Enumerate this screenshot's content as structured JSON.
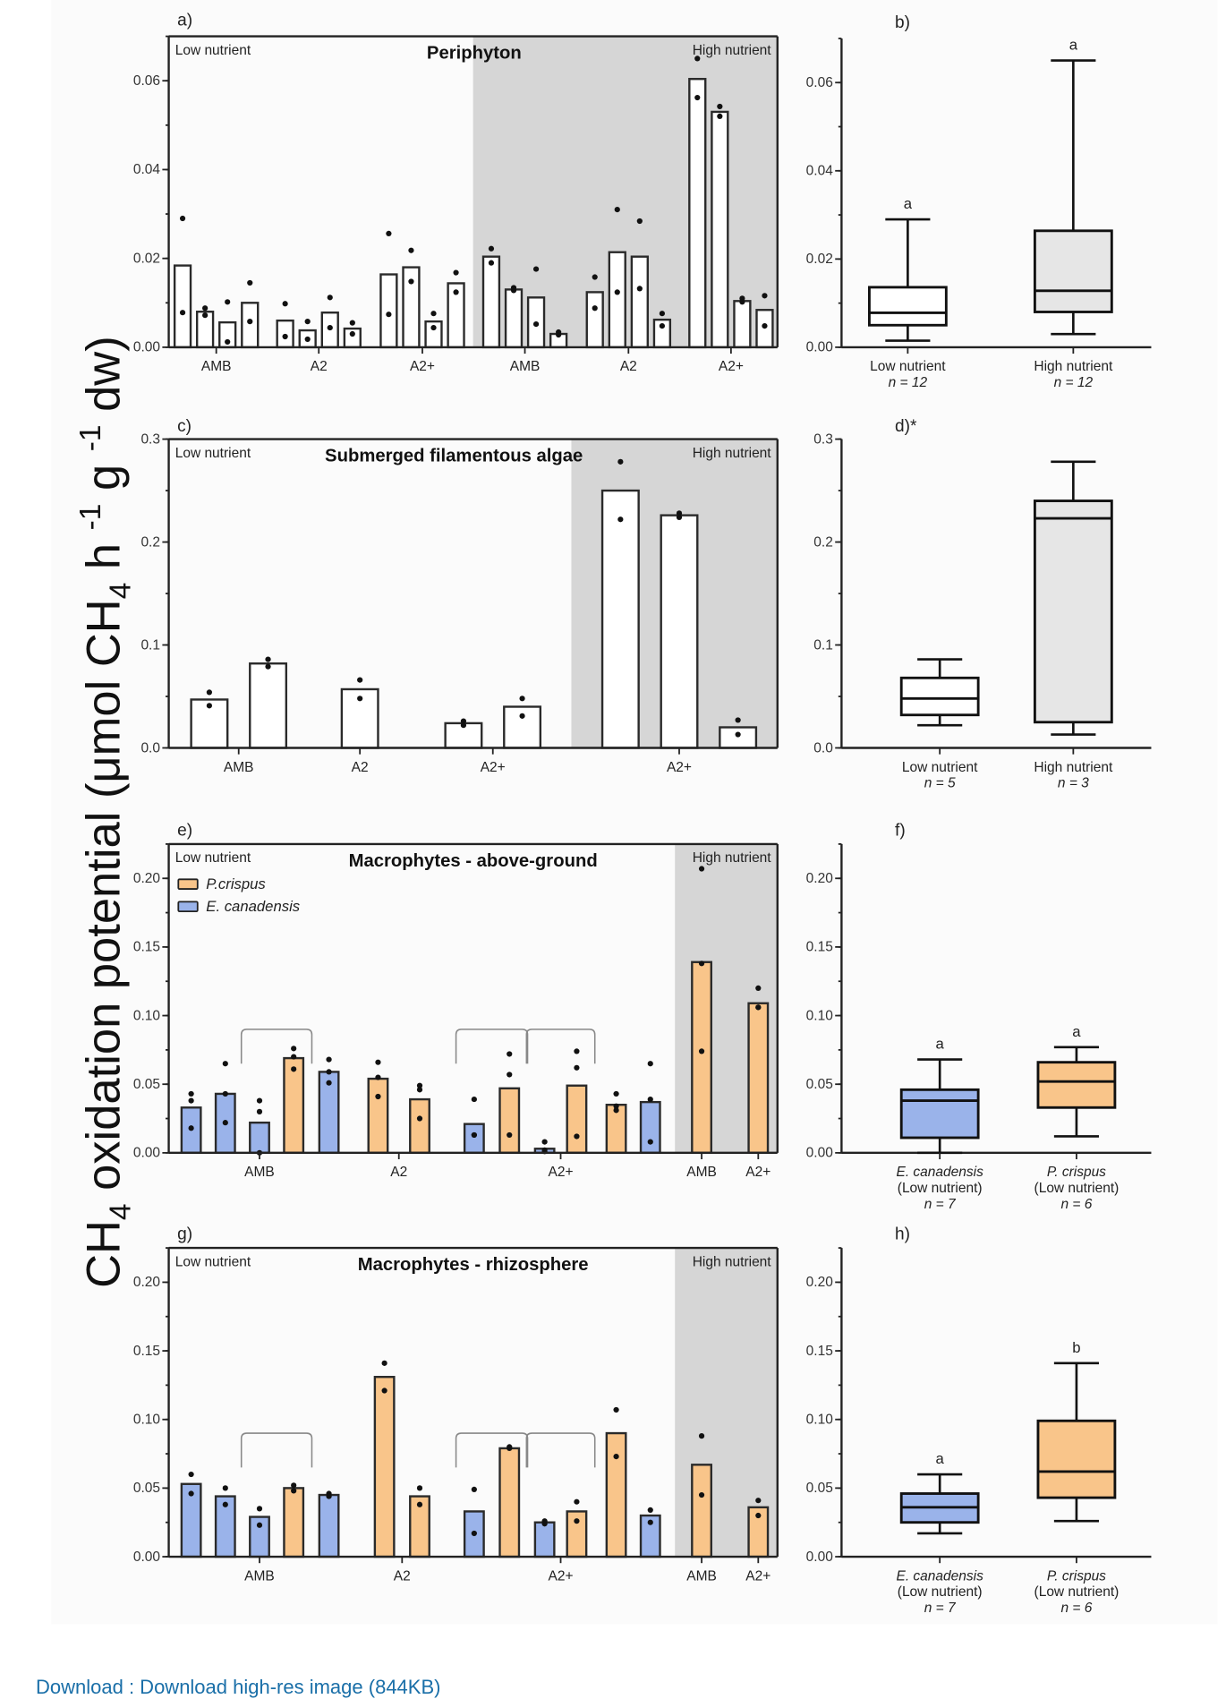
{
  "figure": {
    "ylabel_main": "CH",
    "ylabel_sub": "4",
    "ylabel_rest": " oxidation potential (μmol CH",
    "ylabel_sub2": "4",
    "ylabel_tail": " h ",
    "ylabel_sup1": "-1",
    "ylabel_g": " g ",
    "ylabel_sup2": "-1",
    "ylabel_end": " dw)",
    "colors": {
      "p_crispus": "#f9c58a",
      "e_canadensis": "#9ab3ea",
      "high_shade": "#d6d6d6",
      "box_high": "#e6e6e6",
      "white_bar": "#ffffff"
    }
  },
  "footer": {
    "link_text": "Download : Download high-res image (844KB)"
  },
  "chart_data": [
    {
      "id": "a",
      "letter": "a)",
      "type": "bar",
      "title": "Periphyton",
      "left_label": "Low nutrient",
      "right_label": "High nutrient",
      "ylim": [
        0,
        0.07
      ],
      "yticks": [
        "0.00",
        "0.02",
        "0.04",
        "0.06"
      ],
      "ytick_values": [
        0,
        0.02,
        0.04,
        0.06
      ],
      "minor_step": 0.01,
      "shade_from_index": 12,
      "groups": [
        {
          "label": "AMB",
          "bars": [
            0,
            1,
            2,
            3
          ]
        },
        {
          "label": "A2",
          "bars": [
            4,
            5,
            6,
            7
          ]
        },
        {
          "label": "A2+",
          "bars": [
            8,
            9,
            10,
            11
          ]
        },
        {
          "label": "AMB",
          "bars": [
            12,
            13,
            14,
            15
          ]
        },
        {
          "label": "A2",
          "bars": [
            16,
            17,
            18,
            19
          ]
        },
        {
          "label": "A2+",
          "bars": [
            20,
            21,
            22,
            23
          ]
        }
      ],
      "bars": [
        {
          "value": 0.0184,
          "species": "none",
          "points": [
            0.029,
            0.0078
          ]
        },
        {
          "value": 0.008,
          "species": "none",
          "points": [
            0.0088,
            0.0072
          ]
        },
        {
          "value": 0.0056,
          "species": "none",
          "points": [
            0.0102,
            0.0012
          ]
        },
        {
          "value": 0.01,
          "species": "none",
          "points": [
            0.0145,
            0.0058
          ]
        },
        {
          "value": 0.006,
          "species": "none",
          "points": [
            0.0098,
            0.0024
          ]
        },
        {
          "value": 0.0038,
          "species": "none",
          "points": [
            0.0058,
            0.0018
          ]
        },
        {
          "value": 0.0078,
          "species": "none",
          "points": [
            0.0112,
            0.0044
          ]
        },
        {
          "value": 0.0042,
          "species": "none",
          "points": [
            0.0055,
            0.003
          ]
        },
        {
          "value": 0.0164,
          "species": "none",
          "points": [
            0.0256,
            0.0074
          ]
        },
        {
          "value": 0.018,
          "species": "none",
          "points": [
            0.0218,
            0.0148
          ]
        },
        {
          "value": 0.0058,
          "species": "none",
          "points": [
            0.0076,
            0.0044
          ]
        },
        {
          "value": 0.0144,
          "species": "none",
          "points": [
            0.0168,
            0.0124
          ]
        },
        {
          "value": 0.0204,
          "species": "none",
          "points": [
            0.0222,
            0.019
          ]
        },
        {
          "value": 0.013,
          "species": "none",
          "points": [
            0.0128,
            0.0134
          ]
        },
        {
          "value": 0.0112,
          "species": "none",
          "points": [
            0.0176,
            0.0052
          ]
        },
        {
          "value": 0.003,
          "species": "none",
          "points": [
            0.0028,
            0.0034
          ]
        },
        {
          "value": 0.0124,
          "species": "none",
          "points": [
            0.0158,
            0.0088
          ]
        },
        {
          "value": 0.0214,
          "species": "none",
          "points": [
            0.031,
            0.0124
          ]
        },
        {
          "value": 0.0204,
          "species": "none",
          "points": [
            0.0284,
            0.0132
          ]
        },
        {
          "value": 0.0062,
          "species": "none",
          "points": [
            0.0076,
            0.0048
          ]
        },
        {
          "value": 0.0604,
          "species": "none",
          "points": [
            0.065,
            0.0562
          ]
        },
        {
          "value": 0.053,
          "species": "none",
          "points": [
            0.0542,
            0.052
          ]
        },
        {
          "value": 0.0104,
          "species": "none",
          "points": [
            0.011,
            0.0102
          ]
        },
        {
          "value": 0.0084,
          "species": "none",
          "points": [
            0.0116,
            0.0048
          ]
        }
      ],
      "brackets": []
    },
    {
      "id": "c",
      "letter": "c)",
      "type": "bar",
      "title": "Submerged filamentous algae",
      "left_label": "Low nutrient",
      "right_label": "High nutrient",
      "ylim": [
        0,
        0.3
      ],
      "yticks": [
        "0.0",
        "0.1",
        "0.2",
        "0.3"
      ],
      "ytick_values": [
        0,
        0.1,
        0.2,
        0.3
      ],
      "minor_step": 0.05,
      "shade_from_index": 5,
      "groups": [
        {
          "label": "AMB",
          "bars": [
            0,
            1
          ]
        },
        {
          "label": "A2",
          "bars": [
            2
          ]
        },
        {
          "label": "A2+",
          "bars": [
            3,
            4
          ]
        },
        {
          "label": "A2+",
          "bars": [
            5,
            6,
            7
          ],
          "tick_at": 6
        }
      ],
      "bars": [
        {
          "value": 0.047,
          "species": "none",
          "points": [
            0.054,
            0.041
          ]
        },
        {
          "value": 0.082,
          "species": "none",
          "points": [
            0.086,
            0.079
          ]
        },
        {
          "value": 0.057,
          "species": "none",
          "points": [
            0.066,
            0.048
          ]
        },
        {
          "value": 0.024,
          "species": "none",
          "points": [
            0.026,
            0.022
          ]
        },
        {
          "value": 0.04,
          "species": "none",
          "points": [
            0.048,
            0.031
          ]
        },
        {
          "value": 0.25,
          "species": "none",
          "points": [
            0.278,
            0.222
          ]
        },
        {
          "value": 0.226,
          "species": "none",
          "points": [
            0.228,
            0.224
          ]
        },
        {
          "value": 0.02,
          "species": "none",
          "points": [
            0.027,
            0.013
          ]
        }
      ],
      "brackets": []
    },
    {
      "id": "e",
      "letter": "e)",
      "type": "bar",
      "title": "Macrophytes - above-ground",
      "left_label": "Low nutrient",
      "right_label": "High nutrient",
      "legend": [
        {
          "label": "P.crispus",
          "species": "p"
        },
        {
          "label": "E. canadensis",
          "species": "e"
        }
      ],
      "ylim": [
        0,
        0.225
      ],
      "yticks": [
        "0.00",
        "0.05",
        "0.10",
        "0.15",
        "0.20"
      ],
      "ytick_values": [
        0,
        0.05,
        0.1,
        0.15,
        0.2
      ],
      "minor_step": 0.025,
      "shade_from_index": 14,
      "groups": [
        {
          "label": "AMB",
          "bars": [
            0,
            1,
            2,
            3,
            4
          ],
          "tick_at": 2
        },
        {
          "label": "A2",
          "bars": [
            5,
            6
          ],
          "tick_at": 5.5
        },
        {
          "label": "A2+",
          "bars": [
            7,
            8,
            9,
            10,
            11,
            12
          ],
          "tick_at": 9.5
        },
        {
          "label": "AMB",
          "bars": [
            13
          ]
        },
        {
          "label": "A2+",
          "bars": [
            14
          ]
        }
      ],
      "bars": [
        {
          "value": 0.033,
          "species": "e",
          "points": [
            0.043,
            0.038,
            0.018
          ]
        },
        {
          "value": 0.043,
          "species": "e",
          "points": [
            0.065,
            0.043,
            0.022
          ]
        },
        {
          "value": 0.022,
          "species": "e",
          "points": [
            0.038,
            0.03,
            0.0
          ]
        },
        {
          "value": 0.069,
          "species": "p",
          "points": [
            0.076,
            0.07,
            0.061
          ]
        },
        {
          "value": 0.059,
          "species": "e",
          "points": [
            0.068,
            0.059,
            0.051
          ]
        },
        {
          "value": 0.054,
          "species": "p",
          "points": [
            0.066,
            0.055,
            0.041
          ]
        },
        {
          "value": 0.039,
          "species": "p",
          "points": [
            0.049,
            0.046,
            0.025
          ]
        },
        {
          "value": 0.021,
          "species": "e",
          "points": [
            0.039,
            0.013,
            0.013
          ]
        },
        {
          "value": 0.047,
          "species": "p",
          "points": [
            0.072,
            0.057,
            0.013
          ]
        },
        {
          "value": 0.003,
          "species": "e",
          "points": [
            0.008,
            0.002,
            0.001
          ]
        },
        {
          "value": 0.049,
          "species": "p",
          "points": [
            0.074,
            0.062,
            0.012
          ]
        },
        {
          "value": 0.035,
          "species": "p",
          "points": [
            0.043,
            0.034,
            0.031
          ]
        },
        {
          "value": 0.037,
          "species": "e",
          "points": [
            0.065,
            0.039,
            0.008
          ]
        },
        {
          "value": 0.139,
          "species": "p",
          "points": [
            0.207,
            0.138,
            0.074
          ]
        },
        {
          "value": 0.109,
          "species": "p",
          "points": [
            0.12,
            0.106,
            0.106
          ]
        }
      ],
      "brackets": [
        [
          2,
          3
        ],
        [
          7,
          8
        ],
        [
          9,
          10
        ]
      ],
      "bracket_level": 0.09
    },
    {
      "id": "g",
      "letter": "g)",
      "type": "bar",
      "title": "Macrophytes - rhizosphere",
      "left_label": "Low nutrient",
      "right_label": "High nutrient",
      "ylim": [
        0,
        0.225
      ],
      "yticks": [
        "0.00",
        "0.05",
        "0.10",
        "0.15",
        "0.20"
      ],
      "ytick_values": [
        0,
        0.05,
        0.1,
        0.15,
        0.2
      ],
      "minor_step": 0.025,
      "shade_from_index": 14,
      "groups": [
        {
          "label": "AMB",
          "bars": [
            0,
            1,
            2,
            3,
            4
          ],
          "tick_at": 2
        },
        {
          "label": "A2",
          "bars": [
            5,
            6
          ],
          "tick_at": 5.5
        },
        {
          "label": "A2+",
          "bars": [
            7,
            8,
            9,
            10,
            11,
            12
          ],
          "tick_at": 9.5
        },
        {
          "label": "AMB",
          "bars": [
            13
          ]
        },
        {
          "label": "A2+",
          "bars": [
            14
          ]
        }
      ],
      "bars": [
        {
          "value": 0.053,
          "species": "e",
          "points": [
            0.06,
            0.046
          ]
        },
        {
          "value": 0.044,
          "species": "e",
          "points": [
            0.05,
            0.038
          ]
        },
        {
          "value": 0.029,
          "species": "e",
          "points": [
            0.035,
            0.023
          ]
        },
        {
          "value": 0.05,
          "species": "p",
          "points": [
            0.052,
            0.048
          ]
        },
        {
          "value": 0.045,
          "species": "e",
          "points": [
            0.046,
            0.044
          ]
        },
        {
          "value": 0.131,
          "species": "p",
          "points": [
            0.141,
            0.121
          ]
        },
        {
          "value": 0.044,
          "species": "p",
          "points": [
            0.05,
            0.038
          ]
        },
        {
          "value": 0.033,
          "species": "e",
          "points": [
            0.049,
            0.017
          ]
        },
        {
          "value": 0.079,
          "species": "p",
          "points": [
            0.079,
            0.08
          ]
        },
        {
          "value": 0.025,
          "species": "e",
          "points": [
            0.024,
            0.026
          ]
        },
        {
          "value": 0.033,
          "species": "p",
          "points": [
            0.04,
            0.026
          ]
        },
        {
          "value": 0.09,
          "species": "p",
          "points": [
            0.107,
            0.073
          ]
        },
        {
          "value": 0.03,
          "species": "e",
          "points": [
            0.034,
            0.025
          ]
        },
        {
          "value": 0.067,
          "species": "p",
          "points": [
            0.088,
            0.045
          ]
        },
        {
          "value": 0.036,
          "species": "p",
          "points": [
            0.041,
            0.03
          ]
        }
      ],
      "brackets": [
        [
          2,
          3
        ],
        [
          7,
          8
        ],
        [
          9,
          10
        ]
      ],
      "bracket_level": 0.09
    },
    {
      "id": "b",
      "letter": "b)",
      "type": "boxplot",
      "ylim": [
        0,
        0.07
      ],
      "yticks": [
        "0.00",
        "0.02",
        "0.04",
        "0.06"
      ],
      "ytick_values": [
        0,
        0.02,
        0.04,
        0.06
      ],
      "minor_step": 0.01,
      "boxes": [
        {
          "label": "Low nutrient",
          "label2": "",
          "n": "n = 12",
          "italic": false,
          "fill": "white",
          "min": 0.0015,
          "q1": 0.005,
          "median": 0.0078,
          "q3": 0.0136,
          "max": 0.029,
          "sig": "a"
        },
        {
          "label": "High nutrient",
          "label2": "",
          "n": "n = 12",
          "italic": false,
          "fill": "high",
          "min": 0.003,
          "q1": 0.008,
          "median": 0.0128,
          "q3": 0.0264,
          "max": 0.065,
          "sig": "a"
        }
      ]
    },
    {
      "id": "d",
      "letter": "d)*",
      "type": "boxplot",
      "ylim": [
        0,
        0.3
      ],
      "yticks": [
        "0.0",
        "0.1",
        "0.2",
        "0.3"
      ],
      "ytick_values": [
        0,
        0.1,
        0.2,
        0.3
      ],
      "minor_step": 0.05,
      "boxes": [
        {
          "label": "Low nutrient",
          "label2": "",
          "n": "n = 5",
          "italic": false,
          "fill": "white",
          "min": 0.022,
          "q1": 0.032,
          "median": 0.048,
          "q3": 0.068,
          "max": 0.086,
          "sig": ""
        },
        {
          "label": "High nutrient",
          "label2": "",
          "n": "n = 3",
          "italic": false,
          "fill": "high",
          "min": 0.013,
          "q1": 0.025,
          "median": 0.223,
          "q3": 0.24,
          "max": 0.278,
          "sig": ""
        }
      ]
    },
    {
      "id": "f",
      "letter": "f)",
      "type": "boxplot",
      "ylim": [
        0,
        0.225
      ],
      "yticks": [
        "0.00",
        "0.05",
        "0.10",
        "0.15",
        "0.20"
      ],
      "ytick_values": [
        0,
        0.05,
        0.1,
        0.15,
        0.2
      ],
      "minor_step": 0.025,
      "boxes": [
        {
          "label": "E. canadensis",
          "label2": "(Low nutrient)",
          "n": "n = 7",
          "italic": true,
          "fill": "e",
          "min": 0.0,
          "q1": 0.011,
          "median": 0.038,
          "q3": 0.046,
          "max": 0.068,
          "sig": "a"
        },
        {
          "label": "P. crispus",
          "label2": "(Low nutrient)",
          "n": "n = 6",
          "italic": true,
          "fill": "p",
          "min": 0.012,
          "q1": 0.033,
          "median": 0.052,
          "q3": 0.066,
          "max": 0.077,
          "sig": "a"
        }
      ]
    },
    {
      "id": "h",
      "letter": "h)",
      "type": "boxplot",
      "ylim": [
        0,
        0.225
      ],
      "yticks": [
        "0.00",
        "0.05",
        "0.10",
        "0.15",
        "0.20"
      ],
      "ytick_values": [
        0,
        0.05,
        0.1,
        0.15,
        0.2
      ],
      "minor_step": 0.025,
      "boxes": [
        {
          "label": "E. canadensis",
          "label2": "(Low nutrient)",
          "n": "n = 7",
          "italic": true,
          "fill": "e",
          "min": 0.017,
          "q1": 0.025,
          "median": 0.036,
          "q3": 0.046,
          "max": 0.06,
          "sig": "a"
        },
        {
          "label": "P. crispus",
          "label2": "(Low nutrient)",
          "n": "n = 6",
          "italic": true,
          "fill": "p",
          "min": 0.026,
          "q1": 0.043,
          "median": 0.062,
          "q3": 0.099,
          "max": 0.141,
          "sig": "b"
        }
      ]
    }
  ]
}
